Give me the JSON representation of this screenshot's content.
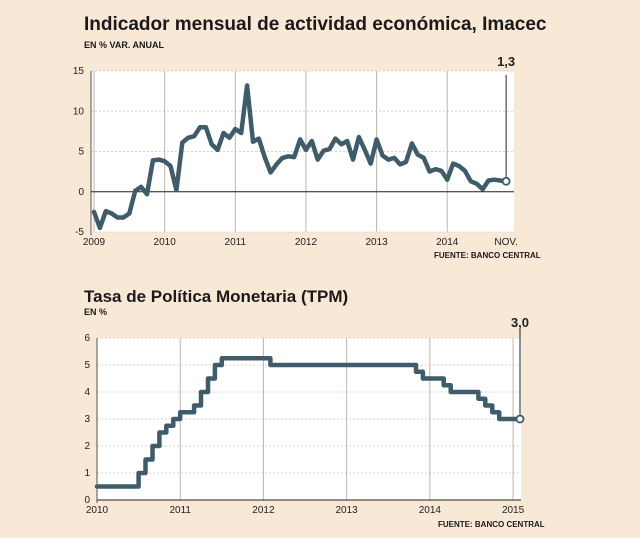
{
  "chart_data": [
    {
      "type": "line",
      "title": "Indicador mensual de actividad económica, Imacec",
      "subtitle": "EN % VAR. ANUAL",
      "source": "FUENTE: BANCO CENTRAL",
      "ylim": [
        -5,
        15
      ],
      "yticks": [
        15,
        10,
        5,
        0,
        -5
      ],
      "xlim": [
        0,
        71
      ],
      "xticks": [
        {
          "label": "2009",
          "x": 0
        },
        {
          "label": "2010",
          "x": 12
        },
        {
          "label": "2011",
          "x": 24
        },
        {
          "label": "2012",
          "x": 36
        },
        {
          "label": "2013",
          "x": 48
        },
        {
          "label": "2014",
          "x": 60
        },
        {
          "label": "NOV.",
          "x": 70
        }
      ],
      "grid": true,
      "callout": "1,3",
      "series": [
        {
          "name": "Imacec",
          "x": [
            0,
            1,
            2,
            3,
            4,
            5,
            6,
            7,
            8,
            9,
            10,
            11,
            12,
            13,
            14,
            15,
            16,
            17,
            18,
            19,
            20,
            21,
            22,
            23,
            24,
            25,
            26,
            27,
            28,
            29,
            30,
            31,
            32,
            33,
            34,
            35,
            36,
            37,
            38,
            39,
            40,
            41,
            42,
            43,
            44,
            45,
            46,
            47,
            48,
            49,
            50,
            51,
            52,
            53,
            54,
            55,
            56,
            57,
            58,
            59,
            60,
            61,
            62,
            63,
            64,
            65,
            66,
            67,
            68,
            69,
            70
          ],
          "values": [
            -2.5,
            -4.5,
            -2.4,
            -2.7,
            -3.2,
            -3.2,
            -2.7,
            0.1,
            0.6,
            -0.3,
            3.9,
            4.0,
            3.8,
            3.2,
            0.2,
            6.1,
            6.7,
            6.9,
            8.0,
            8.0,
            5.9,
            5.2,
            7.3,
            6.7,
            7.8,
            7.3,
            13.2,
            6.2,
            6.6,
            4.3,
            2.4,
            3.4,
            4.2,
            4.4,
            4.3,
            6.5,
            5.2,
            6.3,
            4.0,
            5.1,
            5.3,
            6.6,
            5.9,
            6.3,
            4.0,
            6.8,
            5.2,
            3.5,
            6.5,
            4.5,
            4.0,
            4.2,
            3.4,
            3.7,
            6.0,
            4.6,
            4.2,
            2.5,
            2.8,
            2.6,
            1.5,
            3.5,
            3.2,
            2.6,
            1.3,
            1.0,
            0.3,
            1.4,
            1.5,
            1.4,
            1.3
          ]
        }
      ]
    },
    {
      "type": "line",
      "title": "Tasa de Política Monetaria (TPM)",
      "subtitle": "EN %",
      "source": "FUENTE: BANCO CENTRAL",
      "ylim": [
        0,
        6
      ],
      "yticks": [
        6,
        5,
        4,
        3,
        2,
        1,
        0
      ],
      "xlim": [
        0,
        61
      ],
      "xticks": [
        {
          "label": "2010",
          "x": 0
        },
        {
          "label": "2011",
          "x": 12
        },
        {
          "label": "2012",
          "x": 24
        },
        {
          "label": "2013",
          "x": 36
        },
        {
          "label": "2014",
          "x": 48
        },
        {
          "label": "2015",
          "x": 60
        }
      ],
      "grid": true,
      "callout": "3,0",
      "step": true,
      "series": [
        {
          "name": "TPM",
          "x": [
            0,
            1,
            2,
            3,
            4,
            5,
            6,
            7,
            8,
            9,
            10,
            11,
            12,
            13,
            14,
            15,
            16,
            17,
            18,
            19,
            20,
            21,
            22,
            23,
            24,
            25,
            26,
            27,
            28,
            29,
            30,
            31,
            32,
            33,
            34,
            35,
            36,
            37,
            38,
            39,
            40,
            41,
            42,
            43,
            44,
            45,
            46,
            47,
            48,
            49,
            50,
            51,
            52,
            53,
            54,
            55,
            56,
            57,
            58,
            59,
            60,
            61
          ],
          "values": [
            0.5,
            0.5,
            0.5,
            0.5,
            0.5,
            0.5,
            1.0,
            1.5,
            2.0,
            2.5,
            2.75,
            3.0,
            3.25,
            3.25,
            3.5,
            4.0,
            4.5,
            5.0,
            5.25,
            5.25,
            5.25,
            5.25,
            5.25,
            5.25,
            5.25,
            5.0,
            5.0,
            5.0,
            5.0,
            5.0,
            5.0,
            5.0,
            5.0,
            5.0,
            5.0,
            5.0,
            5.0,
            5.0,
            5.0,
            5.0,
            5.0,
            5.0,
            5.0,
            5.0,
            5.0,
            5.0,
            4.75,
            4.5,
            4.5,
            4.5,
            4.25,
            4.0,
            4.0,
            4.0,
            4.0,
            3.75,
            3.5,
            3.25,
            3.0,
            3.0,
            3.0,
            3.0
          ]
        }
      ]
    }
  ]
}
